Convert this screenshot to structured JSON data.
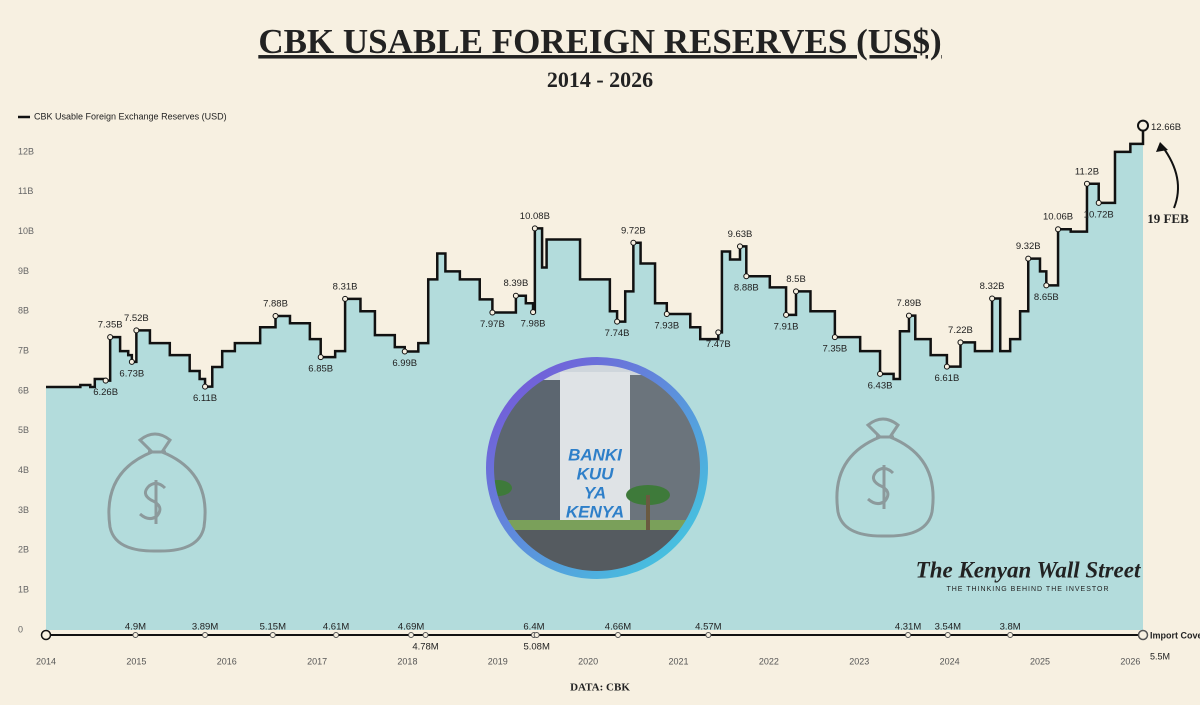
{
  "chart_data": {
    "type": "line",
    "title": "CBK USABLE FOREIGN RESERVES (US$)",
    "subtitle": "2014 - 2026",
    "source": "DATA: CBK",
    "brand": "The Kenyan Wall Street",
    "tagline": "THE THINKING BEHIND THE INVESTOR",
    "photo_text": [
      "BANKI",
      "KUU",
      "YA",
      "KENYA"
    ],
    "end_note": "19 FEB",
    "step": true,
    "xlim": [
      2014,
      2026.14
    ],
    "xticks": [
      2014,
      2015,
      2016,
      2017,
      2018,
      2019,
      2020,
      2021,
      2022,
      2023,
      2024,
      2025,
      2026
    ],
    "ylim": [
      0,
      12.6
    ],
    "yticks": [
      0,
      {
        "value": 1,
        "label": "1B"
      },
      {
        "value": 2,
        "label": "2B"
      },
      {
        "value": 3,
        "label": "3B"
      },
      {
        "value": 4,
        "label": "4B"
      },
      {
        "value": 5,
        "label": "5B"
      },
      {
        "value": 6,
        "label": "6B"
      },
      {
        "value": 7,
        "label": "7B"
      },
      {
        "value": 8,
        "label": "8B"
      },
      {
        "value": 9,
        "label": "9B"
      },
      {
        "value": 10,
        "label": "10B"
      },
      {
        "value": 11,
        "label": "11B"
      },
      {
        "value": 12,
        "label": "12B"
      }
    ],
    "series": [
      {
        "name": "CBK Usable Foreign Exchange Reserves (USD)",
        "color": "#111111",
        "fill": "#b3dcdc",
        "x": [
          2014.0,
          2014.38,
          2014.49,
          2014.54,
          2014.66,
          2014.71,
          2014.82,
          2014.91,
          2014.95,
          2015.0,
          2015.15,
          2015.37,
          2015.59,
          2015.7,
          2015.76,
          2015.84,
          2015.95,
          2016.09,
          2016.37,
          2016.54,
          2016.7,
          2016.92,
          2017.04,
          2017.2,
          2017.31,
          2017.48,
          2017.64,
          2017.86,
          2017.97,
          2018.12,
          2018.23,
          2018.33,
          2018.42,
          2018.58,
          2018.8,
          2018.94,
          2019.2,
          2019.31,
          2019.39,
          2019.41,
          2019.49,
          2019.54,
          2019.91,
          2020.24,
          2020.32,
          2020.41,
          2020.5,
          2020.58,
          2020.74,
          2020.87,
          2021.13,
          2021.24,
          2021.44,
          2021.48,
          2021.57,
          2021.68,
          2021.75,
          2022.01,
          2022.19,
          2022.3,
          2022.46,
          2022.73,
          2023.01,
          2023.23,
          2023.38,
          2023.45,
          2023.55,
          2023.62,
          2023.79,
          2023.97,
          2024.12,
          2024.28,
          2024.47,
          2024.56,
          2024.67,
          2024.78,
          2024.87,
          2025.0,
          2025.07,
          2025.2,
          2025.34,
          2025.52,
          2025.65,
          2025.83,
          2026.0,
          2026.14
        ],
        "values": [
          6.1,
          6.15,
          6.1,
          6.3,
          6.26,
          7.35,
          7.0,
          6.9,
          6.73,
          7.52,
          7.2,
          6.9,
          6.5,
          6.3,
          6.11,
          6.6,
          7.0,
          7.2,
          7.6,
          7.88,
          7.7,
          7.3,
          6.85,
          7.0,
          8.31,
          8.0,
          7.4,
          7.1,
          6.99,
          7.2,
          8.8,
          9.45,
          9.0,
          8.8,
          8.3,
          7.97,
          8.39,
          8.2,
          7.98,
          10.08,
          9.1,
          9.8,
          8.8,
          8.0,
          7.74,
          8.5,
          9.72,
          9.2,
          8.2,
          7.93,
          7.6,
          7.3,
          7.47,
          9.5,
          9.3,
          9.63,
          8.88,
          8.6,
          7.91,
          8.5,
          8.0,
          7.35,
          7.0,
          6.43,
          6.3,
          7.5,
          7.89,
          7.3,
          6.9,
          6.61,
          7.22,
          7.0,
          8.32,
          7.0,
          7.3,
          8.0,
          9.32,
          9.0,
          8.65,
          10.06,
          10.0,
          11.2,
          10.72,
          12.0,
          12.2,
          12.66
        ],
        "value_labels": [
          null,
          null,
          null,
          null,
          "6.26B",
          "7.35B",
          null,
          null,
          "6.73B",
          "7.52B",
          null,
          null,
          null,
          null,
          "6.11B",
          null,
          null,
          null,
          null,
          "7.88B",
          null,
          null,
          "6.85B",
          null,
          "8.31B",
          null,
          null,
          null,
          "6.99B",
          null,
          null,
          null,
          null,
          null,
          null,
          "7.97B",
          "8.39B",
          null,
          "7.98B",
          "10.08B",
          null,
          null,
          null,
          null,
          "7.74B",
          null,
          "9.72B",
          null,
          null,
          "7.93B",
          null,
          null,
          "7.47B",
          null,
          null,
          "9.63B",
          "8.88B",
          null,
          "7.91B",
          "8.5B",
          null,
          "7.35B",
          null,
          "6.43B",
          null,
          null,
          "7.89B",
          null,
          null,
          "6.61B",
          "7.22B",
          null,
          "8.32B",
          null,
          null,
          null,
          "9.32B",
          null,
          "8.65B",
          "10.06B",
          null,
          "11.2B",
          "10.72B",
          null,
          null,
          "12.66B"
        ]
      }
    ],
    "import_cover": {
      "name": "Import Cover",
      "x": [
        2014.99,
        2015.76,
        2016.51,
        2017.21,
        2018.04,
        2018.2,
        2019.4,
        2019.43,
        2020.33,
        2021.33,
        2023.54,
        2023.98,
        2024.67,
        2026.14
      ],
      "values": [
        4.9,
        3.89,
        5.15,
        4.61,
        4.69,
        4.78,
        6.4,
        5.08,
        4.66,
        4.57,
        4.31,
        3.54,
        3.8,
        5.5
      ],
      "value_labels": [
        "4.9M",
        "3.89M",
        "5.15M",
        "4.61M",
        "4.69M",
        "4.78M",
        "6.4M",
        "5.08M",
        "4.66M",
        "4.57M",
        "4.31M",
        "3.54M",
        "3.8M",
        "5.5M"
      ]
    }
  }
}
